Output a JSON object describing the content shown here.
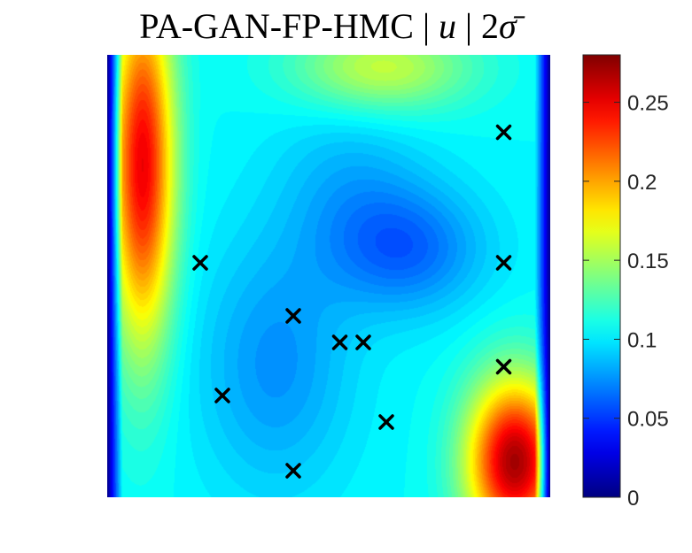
{
  "chart_data": {
    "type": "heatmap",
    "title_parts": {
      "prefix": "PA-GAN-FP-HMC | ",
      "var": "u",
      "mid": " | 2",
      "sigma": "σ̄"
    },
    "colormap": "jet",
    "colorbar": {
      "range": [
        0,
        0.28
      ],
      "ticks": [
        0,
        0.05,
        0.1,
        0.15,
        0.2,
        0.25
      ],
      "tick_labels": [
        "0",
        "0.05",
        "0.1",
        "0.15",
        "0.2",
        "0.25"
      ],
      "location": "right"
    },
    "domain": {
      "x": [
        0,
        1
      ],
      "y": [
        0,
        1
      ]
    },
    "field_features": {
      "background": 0.105,
      "edges_value": 0,
      "hot_regions": [
        {
          "x": 0.08,
          "y": 0.75,
          "value": 0.25
        },
        {
          "x": 0.92,
          "y": 0.08,
          "value": 0.27
        }
      ],
      "cool_regions": [
        {
          "x": 0.68,
          "y": 0.56,
          "value": 0.065
        },
        {
          "x": 0.38,
          "y": 0.3,
          "value": 0.075
        }
      ],
      "warm_regions": [
        {
          "x": 0.62,
          "y": 0.97,
          "value": 0.16
        }
      ]
    },
    "markers": {
      "symbol": "x",
      "color": "#000000",
      "points": [
        {
          "x": 0.21,
          "y": 0.53
        },
        {
          "x": 0.26,
          "y": 0.23
        },
        {
          "x": 0.42,
          "y": 0.41
        },
        {
          "x": 0.42,
          "y": 0.06
        },
        {
          "x": 0.525,
          "y": 0.35
        },
        {
          "x": 0.578,
          "y": 0.35
        },
        {
          "x": 0.63,
          "y": 0.17
        },
        {
          "x": 0.895,
          "y": 0.825
        },
        {
          "x": 0.895,
          "y": 0.53
        },
        {
          "x": 0.895,
          "y": 0.295
        }
      ]
    },
    "grid": false
  }
}
